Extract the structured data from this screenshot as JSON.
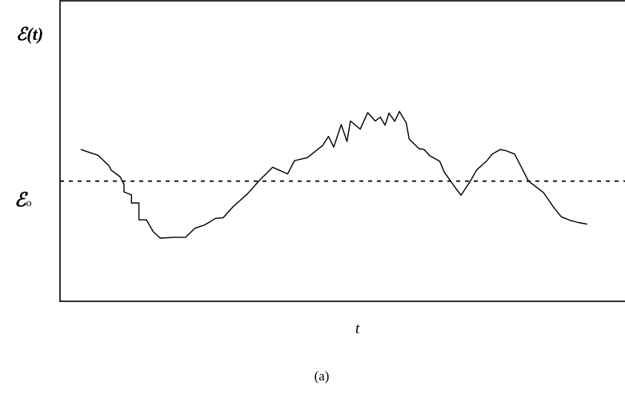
{
  "chart_data": {
    "type": "line",
    "ylabel": "ℰ(t)",
    "xlabel": "t",
    "caption": "(a)",
    "reference_line": {
      "label": "ℰ",
      "label_subscript": "o",
      "y": 0,
      "style": "dashed"
    },
    "xlim": [
      0,
      100
    ],
    "ylim": [
      -4,
      6
    ],
    "grid": false,
    "series": [
      {
        "x": [
          3.6,
          6.6,
          8.5,
          8.9,
          10.4,
          11.1,
          11.1,
          12.4,
          12.4,
          13.7,
          13.7,
          15.0,
          16.2,
          17.4,
          19.8,
          21.8,
          23.4,
          25.1,
          27.0,
          28.3,
          30.0,
          32.5,
          34.7,
          36.9,
          39.5,
          40.7,
          42.9,
          45.6,
          46.6,
          47.5,
          48.8,
          49.8,
          50.4,
          52.1,
          53.4,
          54.7,
          55.6,
          56.4,
          57.1,
          58.1,
          58.9,
          60.1,
          60.6,
          62.3,
          63.2,
          64.2,
          65.9,
          66.7,
          68.3,
          69.6,
          71.3,
          72.3,
          74.1,
          75.0,
          76.4,
          77.4,
          78.9,
          81.3,
          83.9,
          85.7,
          87.0,
          88.6,
          90.0,
          91.5
        ],
        "y": [
          1.05,
          0.86,
          0.51,
          0.36,
          0.15,
          -0.11,
          -0.36,
          -0.46,
          -0.73,
          -0.73,
          -1.29,
          -1.29,
          -1.69,
          -1.9,
          -1.87,
          -1.87,
          -1.57,
          -1.46,
          -1.24,
          -1.22,
          -0.86,
          -0.43,
          0.04,
          0.46,
          0.24,
          0.68,
          0.78,
          1.19,
          1.49,
          1.13,
          1.88,
          1.32,
          2.0,
          1.73,
          2.28,
          2.0,
          2.13,
          1.86,
          2.26,
          1.99,
          2.32,
          1.93,
          1.4,
          1.08,
          1.05,
          0.84,
          0.66,
          0.3,
          -0.14,
          -0.47,
          0.03,
          0.37,
          0.68,
          0.9,
          1.05,
          1.01,
          0.9,
          0.0,
          -0.38,
          -0.88,
          -1.19,
          -1.31,
          -1.38,
          -1.43
        ]
      }
    ]
  }
}
